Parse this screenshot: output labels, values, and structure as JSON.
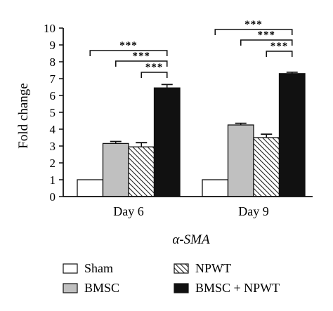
{
  "chart_data": {
    "type": "bar",
    "xlabel": "α-SMA",
    "ylabel": "Fold change",
    "ylim": [
      0,
      10
    ],
    "yticks": [
      0,
      1,
      2,
      3,
      4,
      5,
      6,
      7,
      8,
      9,
      10
    ],
    "categories": [
      "Day 6",
      "Day 9"
    ],
    "series": [
      {
        "name": "Sham",
        "values": [
          1.0,
          1.0
        ],
        "errors": [
          0,
          0
        ],
        "fill": "#ffffff",
        "pattern": "none"
      },
      {
        "name": "BMSC",
        "values": [
          3.15,
          4.25
        ],
        "errors": [
          0.12,
          0.1
        ],
        "fill": "#c0c0c0",
        "pattern": "none"
      },
      {
        "name": "NPWT",
        "values": [
          2.95,
          3.5
        ],
        "errors": [
          0.25,
          0.2
        ],
        "fill": "#ffffff",
        "pattern": "hatch"
      },
      {
        "name": "BMSC + NPWT",
        "values": [
          6.45,
          7.3
        ],
        "errors": [
          0.2,
          0.08
        ],
        "fill": "#111111",
        "pattern": "none"
      }
    ],
    "significance": [
      {
        "category": "Day 6",
        "from": "Sham",
        "to": "BMSC + NPWT",
        "label": "***"
      },
      {
        "category": "Day 6",
        "from": "BMSC",
        "to": "BMSC + NPWT",
        "label": "***"
      },
      {
        "category": "Day 6",
        "from": "NPWT",
        "to": "BMSC + NPWT",
        "label": "***"
      },
      {
        "category": "Day 9",
        "from": "Sham",
        "to": "BMSC + NPWT",
        "label": "***"
      },
      {
        "category": "Day 9",
        "from": "BMSC",
        "to": "BMSC + NPWT",
        "label": "***"
      },
      {
        "category": "Day 9",
        "from": "NPWT",
        "to": "BMSC + NPWT",
        "label": "***"
      }
    ],
    "legend": {
      "placement": "bottom",
      "entries": [
        {
          "label": "Sham",
          "series": "Sham"
        },
        {
          "label": "NPWT",
          "series": "NPWT"
        },
        {
          "label": "BMSC",
          "series": "BMSC"
        },
        {
          "label": "BMSC + NPWT",
          "series": "BMSC + NPWT"
        }
      ]
    }
  }
}
